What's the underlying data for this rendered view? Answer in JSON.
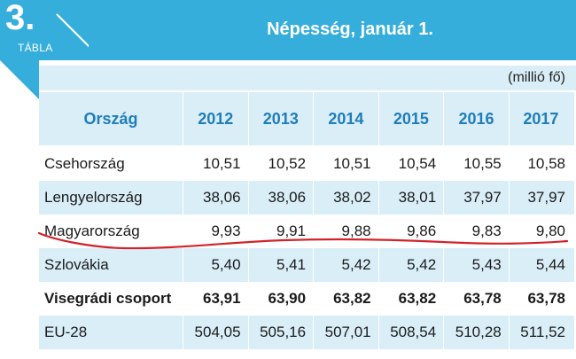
{
  "badge": {
    "number": "3.",
    "word": "TÁBLA"
  },
  "title": "Népesség, január 1.",
  "unit": "(millió fő)",
  "header": {
    "country": "Ország",
    "years": [
      "2012",
      "2013",
      "2014",
      "2015",
      "2016",
      "2017"
    ]
  },
  "rows": [
    {
      "name": "Csehország",
      "values": [
        "10,51",
        "10,52",
        "10,51",
        "10,54",
        "10,55",
        "10,58"
      ]
    },
    {
      "name": "Lengyelország",
      "values": [
        "38,06",
        "38,06",
        "38,02",
        "38,01",
        "37,97",
        "37,97"
      ]
    },
    {
      "name": "Magyarország",
      "values": [
        "9,93",
        "9,91",
        "9,88",
        "9,86",
        "9,83",
        "9,80"
      ]
    },
    {
      "name": "Szlovákia",
      "values": [
        "5,40",
        "5,41",
        "5,42",
        "5,42",
        "5,43",
        "5,44"
      ]
    },
    {
      "name": "Visegrádi csoport",
      "values": [
        "63,91",
        "63,90",
        "63,82",
        "63,82",
        "63,78",
        "63,78"
      ]
    },
    {
      "name": "EU-28",
      "values": [
        "504,05",
        "505,16",
        "507,01",
        "508,54",
        "510,28",
        "511,52"
      ]
    }
  ],
  "colors": {
    "accent": "#36aedc",
    "header_text": "#1f7dba",
    "band": "#d9eef7",
    "annotation": "#d2232a"
  }
}
